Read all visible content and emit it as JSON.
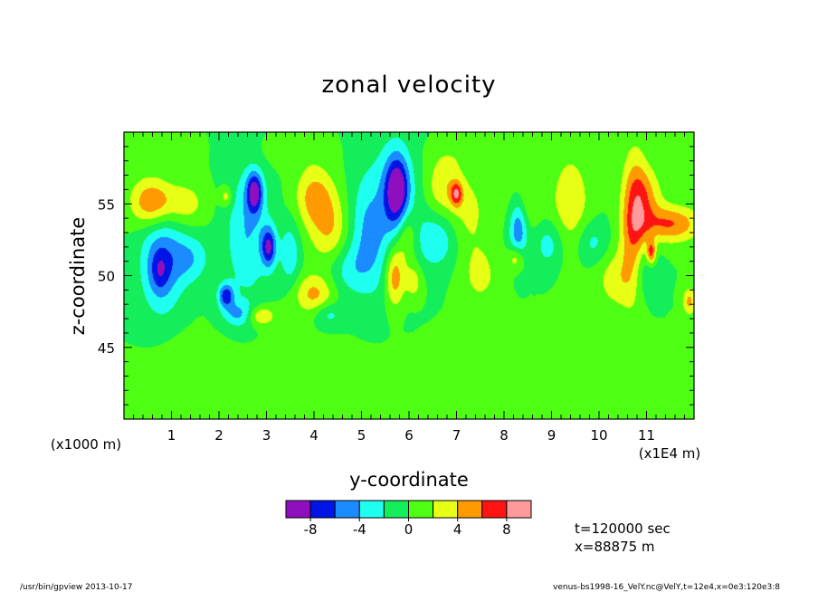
{
  "chart_data": {
    "type": "heatmap",
    "title": "zonal velocity",
    "xlabel": "y-coordinate",
    "ylabel": "z-coordinate",
    "x_unit_left": "(x1000 m)",
    "x_unit_right": "(x1E4 m)",
    "xlim": [
      0,
      12
    ],
    "ylim": [
      40,
      60
    ],
    "x_ticks": [
      "1",
      "2",
      "3",
      "4",
      "5",
      "6",
      "7",
      "8",
      "9",
      "10",
      "11"
    ],
    "y_ticks": [
      "45",
      "50",
      "55"
    ],
    "colorbar": {
      "levels": [
        -10,
        -8,
        -6,
        -4,
        -2,
        0,
        2,
        4,
        6,
        8,
        10
      ],
      "colors": [
        "#8f0fbf",
        "#0014e6",
        "#1a8cff",
        "#1fffef",
        "#14ee5a",
        "#4eff14",
        "#e6ff14",
        "#ff9a00",
        "#ff1414",
        "#ff9a9a"
      ],
      "tick_labels": [
        "-8",
        "-4",
        "0",
        "4",
        "8"
      ]
    },
    "background_level": 0,
    "features": [
      {
        "x": 0.6,
        "y": 55.1,
        "sx": 0.32,
        "sy": 1.2,
        "v": 6.5
      },
      {
        "x": 0.8,
        "y": 51.0,
        "sx": 0.32,
        "sy": 2.6,
        "v": -5.5
      },
      {
        "x": 0.75,
        "y": 50.3,
        "sx": 0.14,
        "sy": 1.0,
        "v": -3.0
      },
      {
        "x": 1.3,
        "y": 55.0,
        "sx": 0.3,
        "sy": 1.1,
        "v": 3.0
      },
      {
        "x": 1.4,
        "y": 51.2,
        "sx": 0.28,
        "sy": 1.2,
        "v": -3.5
      },
      {
        "x": 2.15,
        "y": 55.5,
        "sx": 0.09,
        "sy": 0.5,
        "v": 3.5
      },
      {
        "x": 2.75,
        "y": 55.8,
        "sx": 0.12,
        "sy": 1.0,
        "v": -8.0
      },
      {
        "x": 2.6,
        "y": 53.0,
        "sx": 0.32,
        "sy": 3.2,
        "v": -4.0
      },
      {
        "x": 3.05,
        "y": 52.0,
        "sx": 0.11,
        "sy": 1.0,
        "v": -7.5
      },
      {
        "x": 2.15,
        "y": 48.6,
        "sx": 0.12,
        "sy": 0.6,
        "v": -7.0
      },
      {
        "x": 2.45,
        "y": 47.3,
        "sx": 0.25,
        "sy": 0.6,
        "v": -4.5
      },
      {
        "x": 2.85,
        "y": 47.2,
        "sx": 0.22,
        "sy": 0.5,
        "v": 5.0
      },
      {
        "x": 3.5,
        "y": 51.5,
        "sx": 0.15,
        "sy": 1.6,
        "v": -3.5
      },
      {
        "x": 4.0,
        "y": 55.5,
        "sx": 0.28,
        "sy": 1.5,
        "v": 4.5
      },
      {
        "x": 4.35,
        "y": 53.0,
        "sx": 0.3,
        "sy": 2.0,
        "v": 4.0
      },
      {
        "x": 4.0,
        "y": 48.7,
        "sx": 0.3,
        "sy": 1.0,
        "v": 4.5
      },
      {
        "x": 4.65,
        "y": 50.5,
        "sx": 0.35,
        "sy": 1.3,
        "v": -3.0
      },
      {
        "x": 4.3,
        "y": 47.3,
        "sx": 0.22,
        "sy": 0.6,
        "v": -3.0
      },
      {
        "x": 5.1,
        "y": 53.0,
        "sx": 0.28,
        "sy": 2.6,
        "v": -3.0
      },
      {
        "x": 5.7,
        "y": 50.0,
        "sx": 0.15,
        "sy": 1.6,
        "v": 6.5
      },
      {
        "x": 5.75,
        "y": 56.0,
        "sx": 0.18,
        "sy": 1.7,
        "v": -9.0
      },
      {
        "x": 5.6,
        "y": 54.0,
        "sx": 0.45,
        "sy": 4.0,
        "v": -3.0
      },
      {
        "x": 5.95,
        "y": 52.8,
        "sx": 0.15,
        "sy": 1.4,
        "v": 4.0
      },
      {
        "x": 6.1,
        "y": 49.6,
        "sx": 0.14,
        "sy": 1.0,
        "v": 3.5
      },
      {
        "x": 6.7,
        "y": 56.2,
        "sx": 0.25,
        "sy": 1.5,
        "v": 3.5
      },
      {
        "x": 7.0,
        "y": 55.7,
        "sx": 0.09,
        "sy": 0.6,
        "v": 6.0
      },
      {
        "x": 7.25,
        "y": 54.5,
        "sx": 0.3,
        "sy": 2.0,
        "v": 2.5
      },
      {
        "x": 6.6,
        "y": 52.5,
        "sx": 0.3,
        "sy": 1.4,
        "v": -3.5
      },
      {
        "x": 7.5,
        "y": 50.0,
        "sx": 0.3,
        "sy": 1.6,
        "v": 2.5
      },
      {
        "x": 8.4,
        "y": 55.0,
        "sx": 0.25,
        "sy": 1.4,
        "v": 3.0
      },
      {
        "x": 8.3,
        "y": 53.5,
        "sx": 0.14,
        "sy": 1.6,
        "v": -6.5
      },
      {
        "x": 8.25,
        "y": 51.2,
        "sx": 0.12,
        "sy": 0.6,
        "v": 4.0
      },
      {
        "x": 8.95,
        "y": 52.2,
        "sx": 0.22,
        "sy": 1.2,
        "v": -3.2
      },
      {
        "x": 9.4,
        "y": 55.0,
        "sx": 0.3,
        "sy": 2.6,
        "v": 3.5
      },
      {
        "x": 9.85,
        "y": 52.3,
        "sx": 0.25,
        "sy": 1.1,
        "v": -3.0
      },
      {
        "x": 10.35,
        "y": 49.8,
        "sx": 0.3,
        "sy": 1.5,
        "v": 3.0
      },
      {
        "x": 10.75,
        "y": 53.5,
        "sx": 0.2,
        "sy": 3.5,
        "v": 6.5
      },
      {
        "x": 11.0,
        "y": 55.6,
        "sx": 0.25,
        "sy": 1.4,
        "v": 3.5
      },
      {
        "x": 11.5,
        "y": 53.6,
        "sx": 0.45,
        "sy": 0.9,
        "v": 6.0
      },
      {
        "x": 10.95,
        "y": 50.3,
        "sx": 0.2,
        "sy": 1.5,
        "v": -3.5
      },
      {
        "x": 11.1,
        "y": 51.6,
        "sx": 0.07,
        "sy": 0.6,
        "v": 7.0
      },
      {
        "x": 11.9,
        "y": 48.2,
        "sx": 0.1,
        "sy": 0.7,
        "v": 4.5
      },
      {
        "x": 0.2,
        "y": 58.5,
        "sx": 0.6,
        "sy": 0.8,
        "v": 1.2
      },
      {
        "x": 3.5,
        "y": 58.6,
        "sx": 0.5,
        "sy": 0.8,
        "v": 1.1
      },
      {
        "x": 7.3,
        "y": 58.5,
        "sx": 0.6,
        "sy": 0.8,
        "v": 1.1
      },
      {
        "x": 1.3,
        "y": 44.0,
        "sx": 0.5,
        "sy": 1.5,
        "v": 1.1
      },
      {
        "x": 3.5,
        "y": 43.5,
        "sx": 0.7,
        "sy": 1.5,
        "v": 1.1
      },
      {
        "x": 6.5,
        "y": 43.0,
        "sx": 1.0,
        "sy": 1.8,
        "v": 1.1
      },
      {
        "x": 9.5,
        "y": 44.0,
        "sx": 1.0,
        "sy": 1.6,
        "v": 1.1
      },
      {
        "x": 11.0,
        "y": 43.0,
        "sx": 0.6,
        "sy": 1.4,
        "v": 1.1
      }
    ]
  },
  "info": {
    "time": "t=120000 sec",
    "xpos": "x=88875 m"
  },
  "footer": {
    "left": "/usr/bin/gpview  2013-10-17",
    "right": "venus-bs1998-16_VelY.nc@VelY,t=12e4,x=0e3:120e3:8"
  }
}
